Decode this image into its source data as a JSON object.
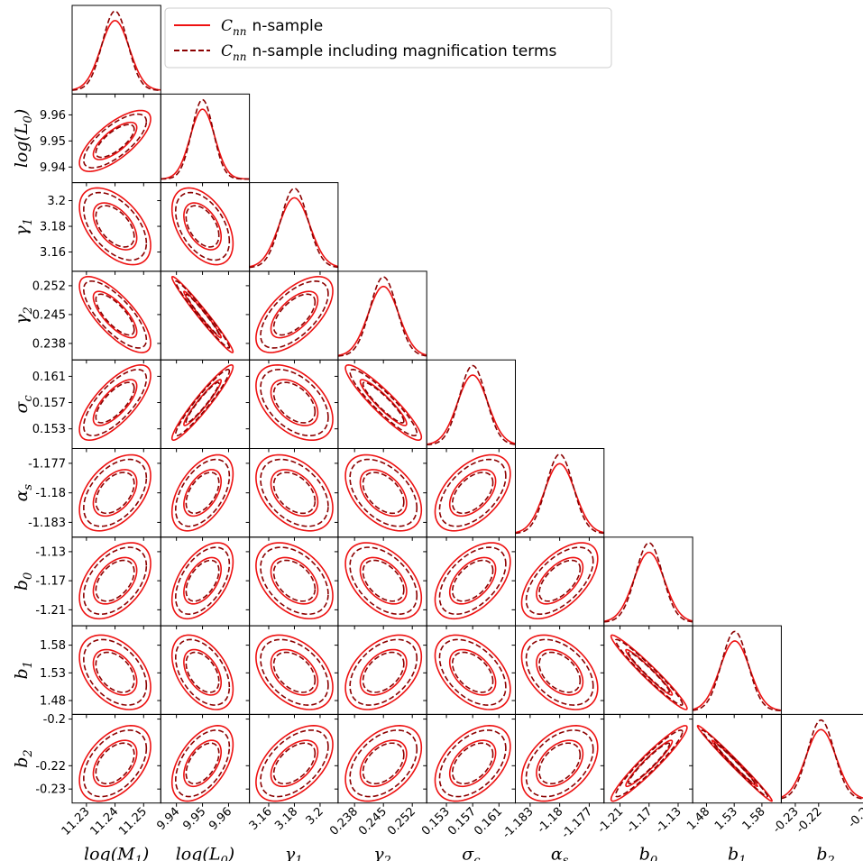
{
  "chart_data": {
    "type": "corner",
    "parameters": [
      {
        "name": "log(M_1)",
        "label_main": "log(M",
        "label_sub": "1",
        "label_tail": ")",
        "ticks": [
          11.23,
          11.24,
          11.25
        ],
        "tick_labels": [
          "11.23",
          "11.24",
          "11.25"
        ],
        "center": 11.24,
        "sigma": 0.005,
        "range": [
          11.225,
          11.256
        ]
      },
      {
        "name": "log(L_0)",
        "label_main": "log(L",
        "label_sub": "0",
        "label_tail": ")",
        "ticks": [
          9.94,
          9.95,
          9.96
        ],
        "tick_labels": [
          "9.94",
          "9.95",
          "9.96"
        ],
        "center": 9.95,
        "sigma": 0.0047,
        "range": [
          9.934,
          9.968
        ]
      },
      {
        "name": "gamma_1",
        "label_main": "γ",
        "label_sub": "1",
        "label_tail": "",
        "ticks": [
          3.16,
          3.18,
          3.2
        ],
        "tick_labels": [
          "3.16",
          "3.18",
          "3.2"
        ],
        "center": 3.18,
        "sigma": 0.012,
        "range": [
          3.145,
          3.214
        ]
      },
      {
        "name": "gamma_2",
        "label_main": "γ",
        "label_sub": "2",
        "label_tail": "",
        "ticks": [
          0.238,
          0.245,
          0.252
        ],
        "tick_labels": [
          "0.238",
          "0.245",
          "0.252"
        ],
        "center": 0.245,
        "sigma": 0.0037,
        "range": [
          0.234,
          0.2555
        ]
      },
      {
        "name": "sigma_c",
        "label_main": "σ",
        "label_sub": "c",
        "label_tail": "",
        "ticks": [
          0.153,
          0.157,
          0.161
        ],
        "tick_labels": [
          "0.153",
          "0.157",
          "0.161"
        ],
        "center": 0.157,
        "sigma": 0.0023,
        "range": [
          0.15,
          0.1635
        ]
      },
      {
        "name": "alpha_s",
        "label_main": "α",
        "label_sub": "s",
        "label_tail": "",
        "ticks": [
          -1.183,
          -1.18,
          -1.177
        ],
        "tick_labels": [
          "-1.183",
          "-1.18",
          "-1.177"
        ],
        "center": -1.18,
        "sigma": 0.00155,
        "range": [
          -1.1845,
          -1.1755
        ]
      },
      {
        "name": "b_0",
        "label_main": "b",
        "label_sub": "0",
        "label_tail": "",
        "ticks": [
          -1.21,
          -1.17,
          -1.13
        ],
        "tick_labels": [
          "-1.21",
          "-1.17",
          "-1.13"
        ],
        "center": -1.17,
        "sigma": 0.021,
        "range": [
          -1.232,
          -1.11
        ]
      },
      {
        "name": "b_1",
        "label_main": "b",
        "label_sub": "1",
        "label_tail": "",
        "ticks": [
          1.48,
          1.53,
          1.58
        ],
        "tick_labels": [
          "1.48",
          "1.53",
          "1.58"
        ],
        "center": 1.531,
        "sigma": 0.027,
        "range": [
          1.455,
          1.615
        ]
      },
      {
        "name": "b_2",
        "label_main": "b",
        "label_sub": "2",
        "label_tail": "",
        "ticks": [
          -0.23,
          -0.22,
          -0.2
        ],
        "tick_labels": [
          "-0.23",
          "-0.22",
          "-0.2"
        ],
        "center": -0.219,
        "sigma": 0.0065,
        "range": [
          -0.236,
          -0.198
        ]
      }
    ],
    "correlations": [
      [
        1,
        0.72,
        -0.5,
        -0.75,
        0.72,
        0.45,
        0.45,
        -0.4,
        0.45
      ],
      [
        0.72,
        1,
        -0.45,
        -0.98,
        0.95,
        0.5,
        0.5,
        -0.45,
        0.5
      ],
      [
        -0.5,
        -0.45,
        1,
        0.62,
        -0.45,
        -0.4,
        -0.4,
        -0.4,
        0.5
      ],
      [
        -0.75,
        -0.98,
        0.62,
        1,
        -0.92,
        -0.45,
        -0.45,
        0.42,
        0.42
      ],
      [
        0.72,
        0.95,
        -0.45,
        -0.92,
        1,
        0.5,
        0.5,
        -0.45,
        0.45
      ],
      [
        0.45,
        0.5,
        -0.4,
        -0.45,
        0.5,
        1,
        0.58,
        -0.42,
        0.42
      ],
      [
        0.45,
        0.5,
        -0.4,
        -0.45,
        0.5,
        0.58,
        1,
        -0.97,
        0.95
      ],
      [
        -0.4,
        -0.45,
        -0.4,
        0.42,
        -0.45,
        -0.42,
        -0.97,
        1,
        -0.99
      ],
      [
        0.45,
        0.5,
        0.5,
        0.42,
        0.45,
        0.42,
        0.95,
        -0.99,
        1
      ]
    ],
    "series": [
      {
        "name": "C_nn n-sample",
        "legend_main": "C",
        "legend_sub": "nn",
        "legend_rest": "n-sample",
        "color": "#ee1111",
        "dash": "none",
        "scale": 1.0
      },
      {
        "name": "C_nn n-sample including magnification terms",
        "legend_main": "C",
        "legend_sub": "nn",
        "legend_rest": "n-sample including magnification terms",
        "color": "#8b0000",
        "dash": "6,3",
        "scale": 0.88
      }
    ],
    "contour_levels_sigma": [
      1.52,
      2.49
    ],
    "legend_position": "upper-right",
    "grid": false
  }
}
